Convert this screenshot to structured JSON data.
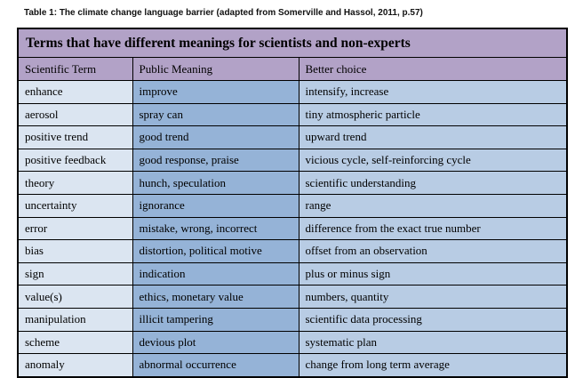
{
  "caption": "Table 1: The climate change language barrier (adapted from Somerville and Hassol, 2011, p.57)",
  "table": {
    "title": "Terms that have different meanings for scientists and non-experts",
    "columns": [
      "Scientific Term",
      "Public Meaning",
      "Better choice"
    ],
    "rows": [
      [
        "enhance",
        "improve",
        "intensify, increase"
      ],
      [
        "aerosol",
        "spray can",
        "tiny atmospheric particle"
      ],
      [
        "positive trend",
        "good trend",
        "upward trend"
      ],
      [
        "positive feedback",
        "good response, praise",
        "vicious cycle, self-reinforcing cycle"
      ],
      [
        "theory",
        "hunch, speculation",
        "scientific understanding"
      ],
      [
        "uncertainty",
        "ignorance",
        "range"
      ],
      [
        "error",
        "mistake, wrong, incorrect",
        "difference from the exact true number"
      ],
      [
        "bias",
        "distortion, political motive",
        "offset from an observation"
      ],
      [
        "sign",
        "indication",
        "plus or minus sign"
      ],
      [
        "value(s)",
        "ethics, monetary value",
        "numbers, quantity"
      ],
      [
        "manipulation",
        "illicit tampering",
        "scientific data processing"
      ],
      [
        "scheme",
        "devious plot",
        "systematic plan"
      ],
      [
        "anomaly",
        "abnormal occurrence",
        "change from long term average"
      ]
    ],
    "colors": {
      "header_bg": "#b2a2c7",
      "col1_bg": "#dbe5f1",
      "col2_bg": "#95b3d7",
      "col3_bg": "#b8cce4",
      "border": "#000000"
    }
  }
}
